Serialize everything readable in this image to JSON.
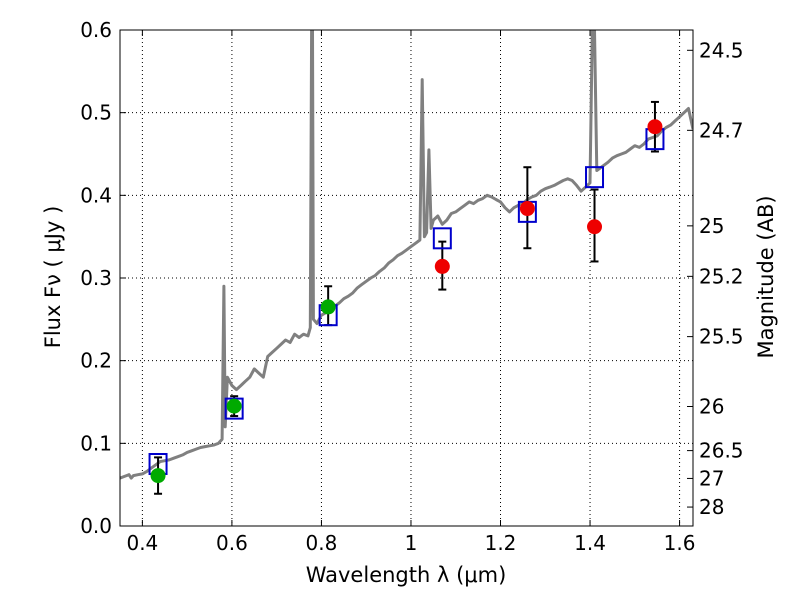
{
  "chart_data": {
    "type": "scatter",
    "xlabel": "Wavelength  λ (μm)",
    "ylabel": "Flux  Fν  ( μJy )",
    "ylabel_right": "Magnitude (AB)",
    "xlim": [
      0.35,
      1.63
    ],
    "ylim": [
      0.0,
      0.6
    ],
    "grid": true,
    "x_ticks": [
      {
        "value": 0.4,
        "label": "0.4"
      },
      {
        "value": 0.6,
        "label": "0.6"
      },
      {
        "value": 0.8,
        "label": "0.8"
      },
      {
        "value": 1.0,
        "label": "1"
      },
      {
        "value": 1.2,
        "label": "1.2"
      },
      {
        "value": 1.4,
        "label": "1.4"
      },
      {
        "value": 1.6,
        "label": "1.6"
      }
    ],
    "y_ticks": [
      {
        "value": 0.0,
        "label": "0.0"
      },
      {
        "value": 0.1,
        "label": "0.1"
      },
      {
        "value": 0.2,
        "label": "0.2"
      },
      {
        "value": 0.3,
        "label": "0.3"
      },
      {
        "value": 0.4,
        "label": "0.4"
      },
      {
        "value": 0.5,
        "label": "0.5"
      },
      {
        "value": 0.6,
        "label": "0.6"
      }
    ],
    "right_ticks": [
      {
        "mag": 24.5,
        "label": "24.5"
      },
      {
        "mag": 24.7,
        "label": "24.7"
      },
      {
        "mag": 25.0,
        "label": "25"
      },
      {
        "mag": 25.2,
        "label": "25.2"
      },
      {
        "mag": 25.5,
        "label": "25.5"
      },
      {
        "mag": 26.0,
        "label": "26"
      },
      {
        "mag": 26.5,
        "label": "26.5"
      },
      {
        "mag": 27.0,
        "label": "27"
      },
      {
        "mag": 28.0,
        "label": "28"
      }
    ],
    "template_spectrum": {
      "name": "model-sed",
      "color": "#808080",
      "x": [
        0.35,
        0.36,
        0.37,
        0.375,
        0.38,
        0.39,
        0.4,
        0.41,
        0.42,
        0.43,
        0.44,
        0.45,
        0.46,
        0.47,
        0.48,
        0.49,
        0.5,
        0.51,
        0.52,
        0.53,
        0.54,
        0.55,
        0.56,
        0.57,
        0.578,
        0.582,
        0.585,
        0.59,
        0.6,
        0.61,
        0.62,
        0.63,
        0.64,
        0.65,
        0.66,
        0.67,
        0.68,
        0.69,
        0.7,
        0.71,
        0.72,
        0.73,
        0.74,
        0.75,
        0.76,
        0.77,
        0.775,
        0.778,
        0.78,
        0.782,
        0.79,
        0.8,
        0.81,
        0.82,
        0.83,
        0.84,
        0.85,
        0.86,
        0.87,
        0.88,
        0.89,
        0.9,
        0.91,
        0.92,
        0.93,
        0.94,
        0.95,
        0.96,
        0.97,
        0.98,
        0.99,
        1.0,
        1.01,
        1.02,
        1.025,
        1.03,
        1.035,
        1.04,
        1.045,
        1.05,
        1.06,
        1.07,
        1.08,
        1.09,
        1.1,
        1.11,
        1.12,
        1.13,
        1.14,
        1.15,
        1.16,
        1.17,
        1.18,
        1.19,
        1.2,
        1.21,
        1.22,
        1.23,
        1.24,
        1.25,
        1.26,
        1.27,
        1.28,
        1.29,
        1.3,
        1.31,
        1.32,
        1.33,
        1.34,
        1.35,
        1.36,
        1.37,
        1.38,
        1.39,
        1.4,
        1.405,
        1.41,
        1.415,
        1.42,
        1.43,
        1.44,
        1.45,
        1.46,
        1.47,
        1.48,
        1.49,
        1.5,
        1.51,
        1.52,
        1.53,
        1.54,
        1.55,
        1.56,
        1.57,
        1.58,
        1.59,
        1.6,
        1.61,
        1.62,
        1.63
      ],
      "y": [
        0.058,
        0.06,
        0.062,
        0.058,
        0.061,
        0.062,
        0.063,
        0.066,
        0.07,
        0.074,
        0.078,
        0.079,
        0.08,
        0.082,
        0.084,
        0.086,
        0.089,
        0.091,
        0.093,
        0.095,
        0.096,
        0.097,
        0.098,
        0.1,
        0.105,
        0.29,
        0.12,
        0.18,
        0.17,
        0.165,
        0.17,
        0.175,
        0.18,
        0.19,
        0.185,
        0.18,
        0.205,
        0.21,
        0.215,
        0.22,
        0.225,
        0.222,
        0.232,
        0.228,
        0.232,
        0.23,
        0.24,
        0.6,
        0.6,
        0.25,
        0.245,
        0.255,
        0.258,
        0.262,
        0.266,
        0.27,
        0.275,
        0.278,
        0.282,
        0.288,
        0.292,
        0.296,
        0.3,
        0.303,
        0.308,
        0.312,
        0.318,
        0.322,
        0.327,
        0.33,
        0.334,
        0.338,
        0.342,
        0.346,
        0.54,
        0.35,
        0.355,
        0.455,
        0.36,
        0.37,
        0.375,
        0.365,
        0.37,
        0.378,
        0.38,
        0.384,
        0.388,
        0.392,
        0.39,
        0.394,
        0.396,
        0.4,
        0.398,
        0.395,
        0.392,
        0.385,
        0.38,
        0.385,
        0.388,
        0.39,
        0.395,
        0.398,
        0.4,
        0.405,
        0.408,
        0.41,
        0.412,
        0.415,
        0.418,
        0.42,
        0.418,
        0.412,
        0.405,
        0.41,
        0.415,
        0.6,
        0.6,
        0.43,
        0.432,
        0.436,
        0.44,
        0.445,
        0.448,
        0.45,
        0.452,
        0.456,
        0.46,
        0.458,
        0.462,
        0.468,
        0.47,
        0.472,
        0.478,
        0.482,
        0.485,
        0.49,
        0.495,
        0.5,
        0.505,
        0.48
      ]
    },
    "model_points": {
      "name": "model-photometry",
      "marker": "open-square",
      "color": "#0000cc",
      "x": [
        0.435,
        0.605,
        0.815,
        1.07,
        1.26,
        1.41,
        1.545
      ],
      "y": [
        0.075,
        0.142,
        0.255,
        0.348,
        0.38,
        0.422,
        0.468
      ]
    },
    "observed_optical": {
      "name": "observed-optical",
      "marker": "filled-circle",
      "color": "#00aa00",
      "x": [
        0.435,
        0.605,
        0.815
      ],
      "y": [
        0.061,
        0.145,
        0.265
      ],
      "yerr_low": [
        0.022,
        0.012,
        0.022
      ],
      "yerr_high": [
        0.022,
        0.012,
        0.025
      ]
    },
    "observed_ir": {
      "name": "observed-ir",
      "marker": "filled-circle",
      "color": "#ee0000",
      "x": [
        1.07,
        1.26,
        1.41,
        1.545
      ],
      "y": [
        0.314,
        0.384,
        0.362,
        0.483
      ],
      "yerr_low": [
        0.028,
        0.048,
        0.042,
        0.03
      ],
      "yerr_high": [
        0.03,
        0.05,
        0.045,
        0.03
      ]
    }
  }
}
